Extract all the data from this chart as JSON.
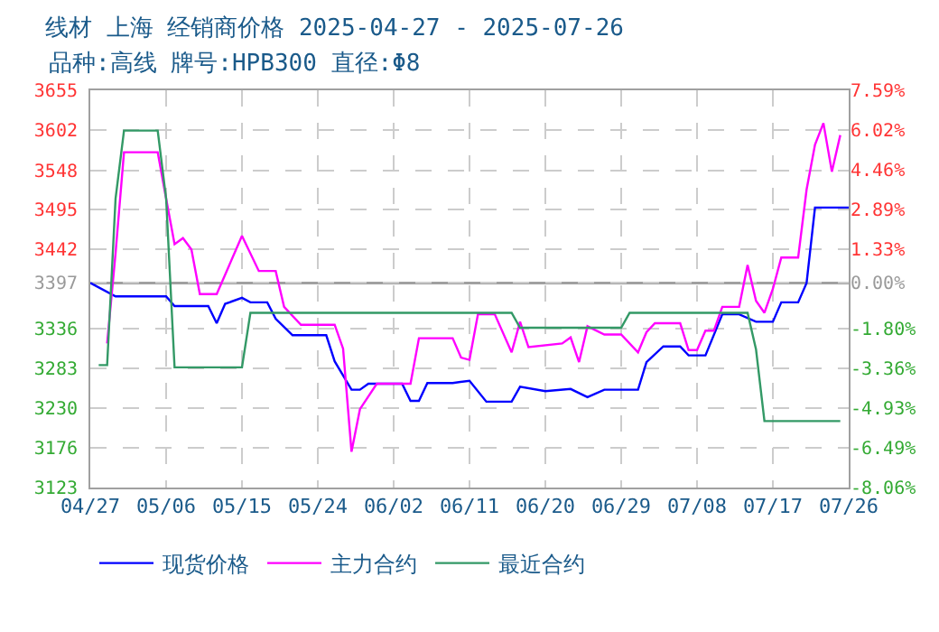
{
  "chart_data": {
    "type": "line",
    "title": "线材 上海 经销商价格 2025-04-27 - 2025-07-26",
    "subtitle": "品种:高线 牌号:HPB300 直径:Φ8",
    "xlim": [
      "2025-04-27",
      "2025-07-26"
    ],
    "xticks": [
      {
        "value": "2025-04-27",
        "label": "04/27"
      },
      {
        "value": "2025-05-06",
        "label": "05/06"
      },
      {
        "value": "2025-05-15",
        "label": "05/15"
      },
      {
        "value": "2025-05-24",
        "label": "05/24"
      },
      {
        "value": "2025-06-02",
        "label": "06/02"
      },
      {
        "value": "2025-06-11",
        "label": "06/11"
      },
      {
        "value": "2025-06-20",
        "label": "06/20"
      },
      {
        "value": "2025-06-29",
        "label": "06/29"
      },
      {
        "value": "2025-07-08",
        "label": "07/08"
      },
      {
        "value": "2025-07-17",
        "label": "07/17"
      },
      {
        "value": "2025-07-26",
        "label": "07/26"
      }
    ],
    "ylim": [
      3123,
      3655
    ],
    "yticks": [
      3123,
      3176,
      3230,
      3283,
      3336,
      3397,
      3442,
      3495,
      3548,
      3602,
      3655
    ],
    "y2lim": [
      -8.06,
      7.59
    ],
    "y2ticks": [
      {
        "value": -8.06,
        "label": "-8.06%"
      },
      {
        "value": -6.49,
        "label": "-6.49%"
      },
      {
        "value": -4.93,
        "label": "-4.93%"
      },
      {
        "value": -3.36,
        "label": "-3.36%"
      },
      {
        "value": -1.8,
        "label": "-1.80%"
      },
      {
        "value": 0,
        "label": "0.00%"
      },
      {
        "value": 1.33,
        "label": "1.33%"
      },
      {
        "value": 2.89,
        "label": "2.89%"
      },
      {
        "value": 4.46,
        "label": "4.46%"
      },
      {
        "value": 6.02,
        "label": "6.02%"
      },
      {
        "value": 7.59,
        "label": "7.59%"
      }
    ],
    "ref_lines": [
      {
        "axis": "y",
        "value": 3397,
        "color": "#a0a0a0"
      }
    ],
    "grid": true,
    "legend": "bottom",
    "marker": "none",
    "line_style": "solid",
    "series": [
      {
        "name": "现货价格",
        "color": "#0000ff",
        "x": [
          "2025-04-27",
          "2025-04-30",
          "2025-05-06",
          "2025-05-07",
          "2025-05-11",
          "2025-05-12",
          "2025-05-13",
          "2025-05-15",
          "2025-05-16",
          "2025-05-18",
          "2025-05-19",
          "2025-05-21",
          "2025-05-25",
          "2025-05-26",
          "2025-05-28",
          "2025-05-29",
          "2025-05-30",
          "2025-06-03",
          "2025-06-04",
          "2025-06-05",
          "2025-06-06",
          "2025-06-09",
          "2025-06-11",
          "2025-06-13",
          "2025-06-16",
          "2025-06-17",
          "2025-06-20",
          "2025-06-23",
          "2025-06-25",
          "2025-06-27",
          "2025-07-01",
          "2025-07-02",
          "2025-07-04",
          "2025-07-06",
          "2025-07-07",
          "2025-07-09",
          "2025-07-11",
          "2025-07-13",
          "2025-07-15",
          "2025-07-17",
          "2025-07-18",
          "2025-07-20",
          "2025-07-21",
          "2025-07-22",
          "2025-07-26"
        ],
        "values": [
          3397,
          3379,
          3379,
          3366,
          3366,
          3343,
          3369,
          3377,
          3371,
          3371,
          3349,
          3327,
          3327,
          3292,
          3254,
          3254,
          3262,
          3262,
          3239,
          3239,
          3263,
          3263,
          3266,
          3238,
          3238,
          3258,
          3252,
          3255,
          3244,
          3254,
          3254,
          3291,
          3312,
          3312,
          3300,
          3300,
          3355,
          3355,
          3345,
          3345,
          3371,
          3371,
          3397,
          3498,
          3498
        ]
      },
      {
        "name": "主力合约",
        "color": "#ff00ff",
        "x": [
          "2025-04-29",
          "2025-04-30",
          "2025-05-01",
          "2025-05-05",
          "2025-05-06",
          "2025-05-07",
          "2025-05-08",
          "2025-05-09",
          "2025-05-10",
          "2025-05-12",
          "2025-05-15",
          "2025-05-17",
          "2025-05-19",
          "2025-05-20",
          "2025-05-22",
          "2025-05-26",
          "2025-05-27",
          "2025-05-28",
          "2025-05-29",
          "2025-05-31",
          "2025-06-04",
          "2025-06-05",
          "2025-06-09",
          "2025-06-10",
          "2025-06-11",
          "2025-06-12",
          "2025-06-14",
          "2025-06-16",
          "2025-06-17",
          "2025-06-18",
          "2025-06-22",
          "2025-06-23",
          "2025-06-24",
          "2025-06-25",
          "2025-06-27",
          "2025-06-29",
          "2025-07-01",
          "2025-07-02",
          "2025-07-03",
          "2025-07-06",
          "2025-07-07",
          "2025-07-08",
          "2025-07-09",
          "2025-07-10",
          "2025-07-11",
          "2025-07-13",
          "2025-07-14",
          "2025-07-15",
          "2025-07-16",
          "2025-07-17",
          "2025-07-18",
          "2025-07-20",
          "2025-07-21",
          "2025-07-22",
          "2025-07-23",
          "2025-07-24",
          "2025-07-25"
        ],
        "values": [
          3316,
          3437,
          3572,
          3572,
          3510,
          3449,
          3457,
          3442,
          3382,
          3382,
          3460,
          3413,
          3413,
          3365,
          3341,
          3341,
          3309,
          3171,
          3228,
          3262,
          3262,
          3323,
          3323,
          3297,
          3294,
          3355,
          3355,
          3304,
          3345,
          3311,
          3316,
          3324,
          3291,
          3339,
          3328,
          3328,
          3304,
          3331,
          3343,
          3343,
          3307,
          3307,
          3333,
          3333,
          3365,
          3365,
          3421,
          3373,
          3357,
          3389,
          3431,
          3431,
          3522,
          3582,
          3611,
          3546,
          3595
        ]
      },
      {
        "name": "最近合约",
        "color": "#339966",
        "x": [
          "2025-04-28",
          "2025-04-29",
          "2025-04-30",
          "2025-05-01",
          "2025-05-05",
          "2025-05-06",
          "2025-05-07",
          "2025-05-15",
          "2025-05-16",
          "2025-06-16",
          "2025-06-17",
          "2025-06-29",
          "2025-06-30",
          "2025-07-14",
          "2025-07-15",
          "2025-07-16",
          "2025-07-25"
        ],
        "values": [
          3287,
          3287,
          3510,
          3601,
          3601,
          3510,
          3284,
          3284,
          3357,
          3357,
          3337,
          3337,
          3357,
          3357,
          3308,
          3212,
          3212
        ]
      }
    ]
  }
}
